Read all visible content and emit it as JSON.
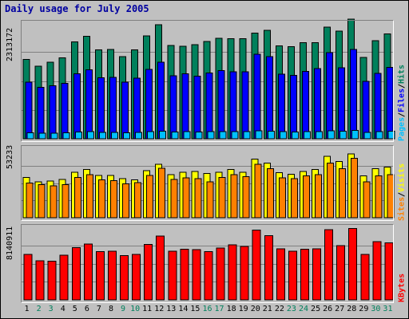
{
  "chart_data": {
    "type": "bar",
    "title": "Daily usage for July 2005",
    "categories": [
      "1",
      "2",
      "3",
      "4",
      "5",
      "6",
      "7",
      "8",
      "9",
      "10",
      "11",
      "12",
      "13",
      "14",
      "15",
      "16",
      "17",
      "18",
      "19",
      "20",
      "21",
      "22",
      "23",
      "24",
      "25",
      "26",
      "27",
      "28",
      "29",
      "30",
      "31"
    ],
    "weekend_days": [
      "2",
      "3",
      "9",
      "10",
      "16",
      "17",
      "23",
      "24",
      "30",
      "31"
    ],
    "panels": [
      {
        "name": "pages-files-hits",
        "ymax_label": "2313172",
        "ylim": [
          0,
          2313172
        ],
        "legend": [
          "Pages",
          "Files",
          "Hits"
        ],
        "series": [
          {
            "name": "Hits",
            "color": "#00805c",
            "values": [
              1590000,
              1450000,
              1530000,
              1620000,
              1940000,
              2050000,
              1780000,
              1790000,
              1640000,
              1780000,
              2060000,
              2280000,
              1870000,
              1850000,
              1880000,
              1950000,
              2010000,
              2000000,
              2000000,
              2110000,
              2170000,
              1860000,
              1840000,
              1920000,
              1920000,
              2230000,
              2150000,
              2390000,
              1630000,
              1960000,
              2100000
            ]
          },
          {
            "name": "Files",
            "color": "#0000ff",
            "values": [
              1130000,
              1030000,
              1060000,
              1110000,
              1300000,
              1380000,
              1220000,
              1230000,
              1130000,
              1210000,
              1390000,
              1530000,
              1260000,
              1300000,
              1250000,
              1320000,
              1360000,
              1340000,
              1340000,
              1690000,
              1640000,
              1290000,
              1270000,
              1350000,
              1400000,
              1720000,
              1420000,
              1790000,
              1150000,
              1310000,
              1430000
            ]
          },
          {
            "name": "Pages",
            "color": "#00c0ff",
            "values": [
              120000,
              110000,
              115000,
              120000,
              135000,
              140000,
              130000,
              130000,
              120000,
              130000,
              140000,
              155000,
              135000,
              140000,
              135000,
              140000,
              145000,
              140000,
              145000,
              160000,
              155000,
              140000,
              135000,
              140000,
              145000,
              160000,
              150000,
              165000,
              125000,
              140000,
              150000
            ]
          }
        ]
      },
      {
        "name": "visits-sites",
        "ymax_label": "53233",
        "ylim": [
          0,
          53233
        ],
        "legend": [
          "Sites",
          "Visits"
        ],
        "series": [
          {
            "name": "Visits",
            "color": "#ffff00",
            "values": [
              31000,
              27500,
              28000,
              29500,
              35000,
              37000,
              32500,
              32500,
              30000,
              29000,
              36000,
              41000,
              33000,
              35000,
              35500,
              34000,
              35000,
              37000,
              35000,
              45000,
              42000,
              34500,
              33500,
              35500,
              37000,
              47000,
              43000,
              49000,
              32000,
              37500,
              39000
            ]
          },
          {
            "name": "Sites",
            "color": "#ff8000",
            "values": [
              26500,
              25500,
              24500,
              25500,
              31000,
              33000,
              29000,
              28500,
              26000,
              27000,
              32500,
              38000,
              29500,
              30500,
              30000,
              27500,
              31000,
              33000,
              31500,
              41000,
              37500,
              30500,
              30000,
              32000,
              33000,
              42000,
              37500,
              45500,
              27500,
              32000,
              33000
            ]
          }
        ]
      },
      {
        "name": "kbytes",
        "ymax_label": "8140911",
        "ylim": [
          0,
          8140911
        ],
        "legend": [
          "KBytes"
        ],
        "series": [
          {
            "name": "KBytes",
            "color": "#ff0000",
            "values": [
              5100000,
              4400000,
              4350000,
              5000000,
              5850000,
              6280000,
              5400000,
              5460000,
              4950000,
              5100000,
              6220000,
              7150000,
              5450000,
              5660000,
              5640000,
              5400000,
              5820000,
              6160000,
              6000000,
              7840000,
              7220000,
              5740000,
              5450000,
              5690000,
              5730000,
              7880000,
              6090000,
              8000000,
              5100000,
              6550000,
              6400000
            ]
          }
        ]
      }
    ]
  },
  "colors": {
    "background": "#c0c0c0",
    "title": "#0000a0",
    "weekday_label": "#000000",
    "weekend_label": "#00805c"
  }
}
